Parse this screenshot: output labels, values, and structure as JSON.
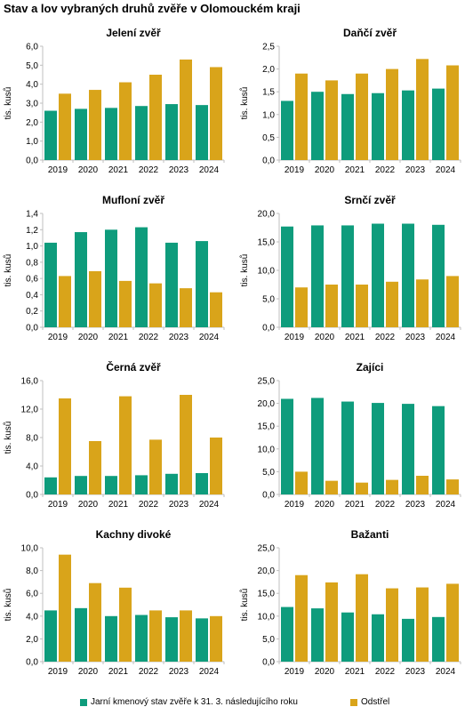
{
  "title": "Stav a lov vybraných druhů zvěře v Olomouckém kraji",
  "legend": {
    "stock_label": "Jarní kmenový stav zvěře k 31. 3. následujícího roku",
    "harvest_label": "Odstřel"
  },
  "colors": {
    "stock": "#0e9c7c",
    "harvest": "#d9a41a",
    "axis": "#bfbfbf"
  },
  "chart_data": [
    {
      "type": "bar",
      "title": "Jelení zvěř",
      "ylabel": "tis. kusů",
      "categories": [
        "2019",
        "2020",
        "2021",
        "2022",
        "2023",
        "2024"
      ],
      "ylim": [
        0,
        6.0
      ],
      "yticks": [
        "0,0",
        "1,0",
        "2,0",
        "3,0",
        "4,0",
        "5,0",
        "6,0"
      ],
      "series": [
        {
          "name": "Jarní kmenový stav zvěře k 31. 3. následujícího roku",
          "values": [
            2.6,
            2.7,
            2.75,
            2.85,
            2.95,
            2.9
          ]
        },
        {
          "name": "Odstřel",
          "values": [
            3.5,
            3.7,
            4.1,
            4.5,
            5.3,
            4.9
          ]
        }
      ]
    },
    {
      "type": "bar",
      "title": "Daňčí zvěř",
      "ylabel": "tis. kusů",
      "categories": [
        "2019",
        "2020",
        "2021",
        "2022",
        "2023",
        "2024"
      ],
      "ylim": [
        0,
        2.5
      ],
      "yticks": [
        "0,0",
        "0,5",
        "1,0",
        "1,5",
        "2,0",
        "2,5"
      ],
      "series": [
        {
          "name": "Jarní kmenový stav zvěře k 31. 3. následujícího roku",
          "values": [
            1.3,
            1.5,
            1.45,
            1.47,
            1.53,
            1.57
          ]
        },
        {
          "name": "Odstřel",
          "values": [
            1.9,
            1.75,
            1.9,
            2.0,
            2.22,
            2.08
          ]
        }
      ]
    },
    {
      "type": "bar",
      "title": "Mufloní zvěř",
      "ylabel": "tis. kusů",
      "categories": [
        "2019",
        "2020",
        "2021",
        "2022",
        "2023",
        "2024"
      ],
      "ylim": [
        0,
        1.4
      ],
      "yticks": [
        "0,0",
        "0,2",
        "0,4",
        "0,6",
        "0,8",
        "1,0",
        "1,2",
        "1,4"
      ],
      "series": [
        {
          "name": "Jarní kmenový stav zvěře k 31. 3. následujícího roku",
          "values": [
            1.04,
            1.17,
            1.2,
            1.23,
            1.04,
            1.06
          ]
        },
        {
          "name": "Odstřel",
          "values": [
            0.63,
            0.69,
            0.57,
            0.54,
            0.48,
            0.43
          ]
        }
      ]
    },
    {
      "type": "bar",
      "title": "Srnčí zvěř",
      "ylabel": "tis. kusů",
      "categories": [
        "2019",
        "2020",
        "2021",
        "2022",
        "2023",
        "2024"
      ],
      "ylim": [
        0,
        20.0
      ],
      "yticks": [
        "0,0",
        "5,0",
        "10,0",
        "15,0",
        "20,0"
      ],
      "series": [
        {
          "name": "Jarní kmenový stav zvěře k 31. 3. následujícího roku",
          "values": [
            17.7,
            17.9,
            17.9,
            18.2,
            18.2,
            18.0
          ]
        },
        {
          "name": "Odstřel",
          "values": [
            7.0,
            7.5,
            7.5,
            8.0,
            8.4,
            9.0
          ]
        }
      ]
    },
    {
      "type": "bar",
      "title": "Černá zvěř",
      "ylabel": "tis. kusů",
      "categories": [
        "2019",
        "2020",
        "2021",
        "2022",
        "2023",
        "2024"
      ],
      "ylim": [
        0,
        16.0
      ],
      "yticks": [
        "0,0",
        "4,0",
        "8,0",
        "12,0",
        "16,0"
      ],
      "series": [
        {
          "name": "Jarní kmenový stav zvěře k 31. 3. následujícího roku",
          "values": [
            2.4,
            2.6,
            2.6,
            2.7,
            2.9,
            3.0
          ]
        },
        {
          "name": "Odstřel",
          "values": [
            13.5,
            7.5,
            13.8,
            7.7,
            14.0,
            8.0
          ]
        }
      ]
    },
    {
      "type": "bar",
      "title": "Zajíci",
      "ylabel": "",
      "categories": [
        "2019",
        "2020",
        "2021",
        "2022",
        "2023",
        "2024"
      ],
      "ylim": [
        0,
        25.0
      ],
      "yticks": [
        "0,0",
        "5,0",
        "10,0",
        "15,0",
        "20,0",
        "25,0"
      ],
      "series": [
        {
          "name": "Jarní kmenový stav zvěře k 31. 3. následujícího roku",
          "values": [
            21.0,
            21.2,
            20.4,
            20.1,
            19.9,
            19.4
          ]
        },
        {
          "name": "Odstřel",
          "values": [
            5.0,
            3.0,
            2.6,
            3.2,
            4.1,
            3.3
          ]
        }
      ]
    },
    {
      "type": "bar",
      "title": "Kachny divoké",
      "ylabel": "tis. kusů",
      "categories": [
        "2019",
        "2020",
        "2021",
        "2022",
        "2023",
        "2024"
      ],
      "ylim": [
        0,
        10.0
      ],
      "yticks": [
        "0,0",
        "2,0",
        "4,0",
        "6,0",
        "8,0",
        "10,0"
      ],
      "series": [
        {
          "name": "Jarní kmenový stav zvěře k 31. 3. následujícího roku",
          "values": [
            4.5,
            4.7,
            4.0,
            4.1,
            3.9,
            3.8
          ]
        },
        {
          "name": "Odstřel",
          "values": [
            9.4,
            6.9,
            6.5,
            4.5,
            4.5,
            4.0
          ]
        }
      ]
    },
    {
      "type": "bar",
      "title": "Bažanti",
      "ylabel": "tis. kusů",
      "categories": [
        "2019",
        "2020",
        "2021",
        "2022",
        "2023",
        "2024"
      ],
      "ylim": [
        0,
        25.0
      ],
      "yticks": [
        "0,0",
        "5,0",
        "10,0",
        "15,0",
        "20,0",
        "25,0"
      ],
      "series": [
        {
          "name": "Jarní kmenový stav zvěře k 31. 3. následujícího roku",
          "values": [
            12.0,
            11.7,
            10.8,
            10.4,
            9.4,
            9.8
          ]
        },
        {
          "name": "Odstřel",
          "values": [
            19.0,
            17.4,
            19.2,
            16.1,
            16.3,
            17.1
          ]
        }
      ]
    }
  ]
}
